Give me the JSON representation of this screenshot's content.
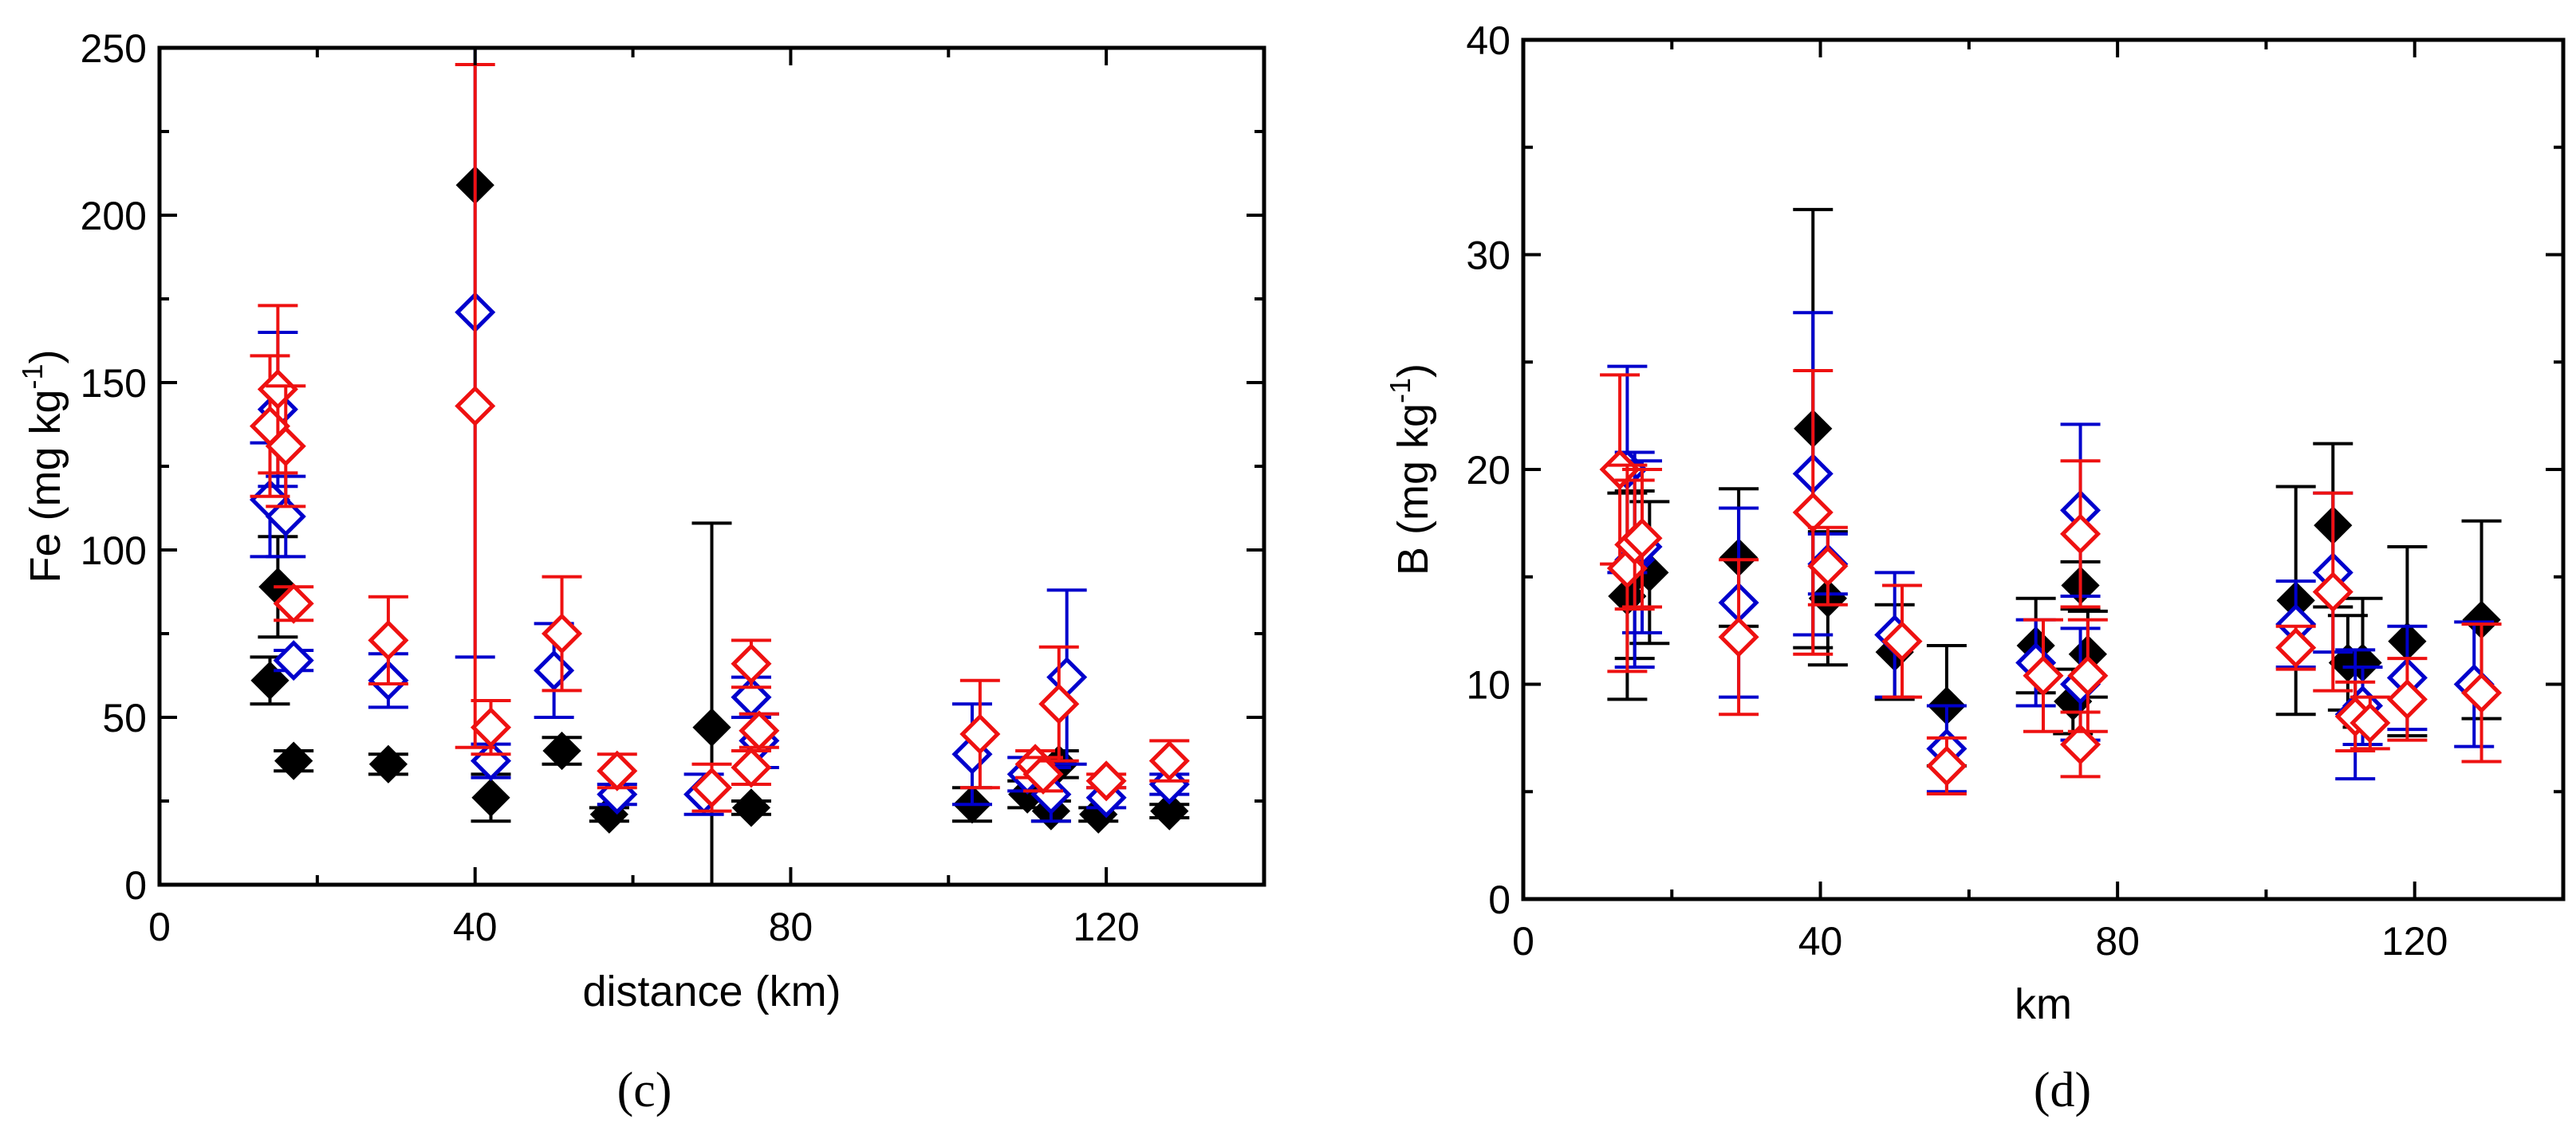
{
  "series_styles": {
    "black": {
      "color": "#000000",
      "filled": true
    },
    "blue": {
      "color": "#0000cc",
      "filled": false
    },
    "red": {
      "color": "#ee1111",
      "filled": false
    }
  },
  "chart_data": [
    {
      "type": "scatter",
      "panel_label": "(c)",
      "xlabel": "distance (km)",
      "ylabel": "Fe (mg kg",
      "ylabel_superscript": "-1",
      "ylabel_close": ")",
      "xlim": [
        0,
        140
      ],
      "ylim": [
        0,
        250
      ],
      "xticks": [
        0,
        40,
        80,
        120
      ],
      "xtick_labels": [
        "0",
        "40",
        "80",
        "120"
      ],
      "xminor": [
        20,
        60,
        100,
        140
      ],
      "yticks": [
        0,
        50,
        100,
        150,
        200,
        250
      ],
      "ytick_labels": [
        "0",
        "50",
        "100",
        "150",
        "200",
        "250"
      ],
      "yminor": [
        25,
        75,
        125,
        175,
        225
      ],
      "series": [
        {
          "name": "black",
          "points": [
            {
              "x": 14,
              "y": 61,
              "err": 7
            },
            {
              "x": 15,
              "y": 89,
              "err": 15
            },
            {
              "x": 17,
              "y": 37,
              "err": 3
            },
            {
              "x": 29,
              "y": 36,
              "err": 3
            },
            {
              "x": 40,
              "y": 209,
              "err": 0
            },
            {
              "x": 42,
              "y": 26,
              "err": 7
            },
            {
              "x": 51,
              "y": 40,
              "err": 4
            },
            {
              "x": 57,
              "y": 21,
              "err": 2
            },
            {
              "x": 70,
              "y": 47,
              "err": 61
            },
            {
              "x": 75,
              "y": 23,
              "err": 2
            },
            {
              "x": 103,
              "y": 24,
              "err": 5
            },
            {
              "x": 110,
              "y": 27,
              "err": 4
            },
            {
              "x": 113,
              "y": 22,
              "err": 3
            },
            {
              "x": 114,
              "y": 36,
              "err": 4
            },
            {
              "x": 119,
              "y": 21,
              "err": 2
            },
            {
              "x": 128,
              "y": 22,
              "err": 2
            }
          ]
        },
        {
          "name": "blue",
          "points": [
            {
              "x": 14,
              "y": 115,
              "err": 17
            },
            {
              "x": 15,
              "y": 142,
              "err": 23
            },
            {
              "x": 16,
              "y": 110,
              "err": 12
            },
            {
              "x": 17,
              "y": 67,
              "err": 3
            },
            {
              "x": 29,
              "y": 61,
              "err": 8
            },
            {
              "x": 40,
              "y": 171,
              "err": 103
            },
            {
              "x": 42,
              "y": 37,
              "err": 5
            },
            {
              "x": 50,
              "y": 64,
              "err": 14
            },
            {
              "x": 58,
              "y": 27,
              "err": 3
            },
            {
              "x": 69,
              "y": 27,
              "err": 6
            },
            {
              "x": 75,
              "y": 56,
              "err": 6
            },
            {
              "x": 76,
              "y": 43,
              "err": 8
            },
            {
              "x": 103,
              "y": 39,
              "err": 15
            },
            {
              "x": 110,
              "y": 33,
              "err": 5
            },
            {
              "x": 113,
              "y": 27,
              "err": 8
            },
            {
              "x": 115,
              "y": 62,
              "err": 26
            },
            {
              "x": 120,
              "y": 26,
              "err": 3
            },
            {
              "x": 128,
              "y": 30,
              "err": 3
            }
          ]
        },
        {
          "name": "red",
          "points": [
            {
              "x": 14,
              "y": 137,
              "err": 21
            },
            {
              "x": 15,
              "y": 148,
              "err": 25
            },
            {
              "x": 16,
              "y": 131,
              "err": 18
            },
            {
              "x": 17,
              "y": 84,
              "err": 5
            },
            {
              "x": 29,
              "y": 73,
              "err": 13
            },
            {
              "x": 40,
              "y": 143,
              "err": 102
            },
            {
              "x": 42,
              "y": 47,
              "err": 8
            },
            {
              "x": 51,
              "y": 75,
              "err": 17
            },
            {
              "x": 58,
              "y": 34,
              "err": 5
            },
            {
              "x": 70,
              "y": 29,
              "err": 7
            },
            {
              "x": 75,
              "y": 66,
              "err": 7
            },
            {
              "x": 76,
              "y": 46,
              "err": 5
            },
            {
              "x": 75,
              "y": 35,
              "err": 5
            },
            {
              "x": 104,
              "y": 45,
              "err": 16
            },
            {
              "x": 111,
              "y": 36,
              "err": 4
            },
            {
              "x": 112,
              "y": 33,
              "err": 5
            },
            {
              "x": 114,
              "y": 54,
              "err": 17
            },
            {
              "x": 120,
              "y": 31,
              "err": 2
            },
            {
              "x": 128,
              "y": 37,
              "err": 6
            }
          ]
        }
      ]
    },
    {
      "type": "scatter",
      "panel_label": "(d)",
      "xlabel": "km",
      "ylabel": "B (mg kg",
      "ylabel_superscript": "-1",
      "ylabel_close": ")",
      "xlim": [
        0,
        140
      ],
      "ylim": [
        0,
        40
      ],
      "xticks": [
        0,
        40,
        80,
        120
      ],
      "xtick_labels": [
        "0",
        "40",
        "80",
        "120"
      ],
      "xminor": [
        20,
        60,
        100,
        140
      ],
      "yticks": [
        0,
        10,
        20,
        30,
        40
      ],
      "ytick_labels": [
        "0",
        "10",
        "20",
        "30",
        "40"
      ],
      "yminor": [
        5,
        15,
        25,
        35
      ],
      "series": [
        {
          "name": "black",
          "points": [
            {
              "x": 14,
              "y": 14.1,
              "err": 4.8
            },
            {
              "x": 15,
              "y": 15.1,
              "err": 3.9
            },
            {
              "x": 17,
              "y": 15.2,
              "err": 3.3
            },
            {
              "x": 29,
              "y": 15.9,
              "err": 3.2
            },
            {
              "x": 39,
              "y": 21.9,
              "err": 10.2
            },
            {
              "x": 41,
              "y": 14.0,
              "err": 3.1
            },
            {
              "x": 50,
              "y": 11.5,
              "err": 2.2
            },
            {
              "x": 57,
              "y": 9.0,
              "err": 2.8
            },
            {
              "x": 69,
              "y": 11.8,
              "err": 2.2
            },
            {
              "x": 75,
              "y": 14.6,
              "err": 1.1
            },
            {
              "x": 74,
              "y": 9.2,
              "err": 1.5
            },
            {
              "x": 76,
              "y": 11.4,
              "err": 2.0
            },
            {
              "x": 104,
              "y": 13.9,
              "err": 5.3
            },
            {
              "x": 109,
              "y": 17.4,
              "err": 3.8
            },
            {
              "x": 111,
              "y": 11.0,
              "err": 2.2
            },
            {
              "x": 113,
              "y": 11.0,
              "err": 3.0
            },
            {
              "x": 119,
              "y": 12.0,
              "err": 4.4
            },
            {
              "x": 129,
              "y": 13.0,
              "err": 4.6
            }
          ]
        },
        {
          "name": "blue",
          "points": [
            {
              "x": 14,
              "y": 20.0,
              "err": 4.8
            },
            {
              "x": 15,
              "y": 15.8,
              "err": 5.0
            },
            {
              "x": 16,
              "y": 16.4,
              "err": 4.0
            },
            {
              "x": 29,
              "y": 13.8,
              "err": 4.4
            },
            {
              "x": 39,
              "y": 19.8,
              "err": 7.5
            },
            {
              "x": 41,
              "y": 15.6,
              "err": 1.4
            },
            {
              "x": 50,
              "y": 12.3,
              "err": 2.9
            },
            {
              "x": 57,
              "y": 7.0,
              "err": 2.0
            },
            {
              "x": 69,
              "y": 11.0,
              "err": 2.0
            },
            {
              "x": 75,
              "y": 18.1,
              "err": 4.0
            },
            {
              "x": 75,
              "y": 10.0,
              "err": 2.6
            },
            {
              "x": 104,
              "y": 12.8,
              "err": 2.0
            },
            {
              "x": 109,
              "y": 15.2,
              "err": 3.7
            },
            {
              "x": 112,
              "y": 8.6,
              "err": 3.0
            },
            {
              "x": 113,
              "y": 9.0,
              "err": 1.8
            },
            {
              "x": 119,
              "y": 10.3,
              "err": 2.4
            },
            {
              "x": 128,
              "y": 10.0,
              "err": 2.9
            }
          ]
        },
        {
          "name": "red",
          "points": [
            {
              "x": 13,
              "y": 20.0,
              "err": 4.4
            },
            {
              "x": 14,
              "y": 15.4,
              "err": 4.8
            },
            {
              "x": 15,
              "y": 16.5,
              "err": 3.0
            },
            {
              "x": 16,
              "y": 16.8,
              "err": 3.2
            },
            {
              "x": 29,
              "y": 12.2,
              "err": 3.6
            },
            {
              "x": 39,
              "y": 18.0,
              "err": 6.6
            },
            {
              "x": 41,
              "y": 15.5,
              "err": 1.8
            },
            {
              "x": 51,
              "y": 12.0,
              "err": 2.6
            },
            {
              "x": 57,
              "y": 6.2,
              "err": 1.3
            },
            {
              "x": 70,
              "y": 10.4,
              "err": 2.6
            },
            {
              "x": 75,
              "y": 17.0,
              "err": 3.4
            },
            {
              "x": 75,
              "y": 7.2,
              "err": 1.5
            },
            {
              "x": 76,
              "y": 10.4,
              "err": 2.6
            },
            {
              "x": 104,
              "y": 11.7,
              "err": 1.0
            },
            {
              "x": 109,
              "y": 14.3,
              "err": 4.6
            },
            {
              "x": 112,
              "y": 8.5,
              "err": 1.6
            },
            {
              "x": 114,
              "y": 8.2,
              "err": 1.2
            },
            {
              "x": 119,
              "y": 9.3,
              "err": 1.9
            },
            {
              "x": 129,
              "y": 9.6,
              "err": 3.2
            }
          ]
        }
      ]
    }
  ]
}
